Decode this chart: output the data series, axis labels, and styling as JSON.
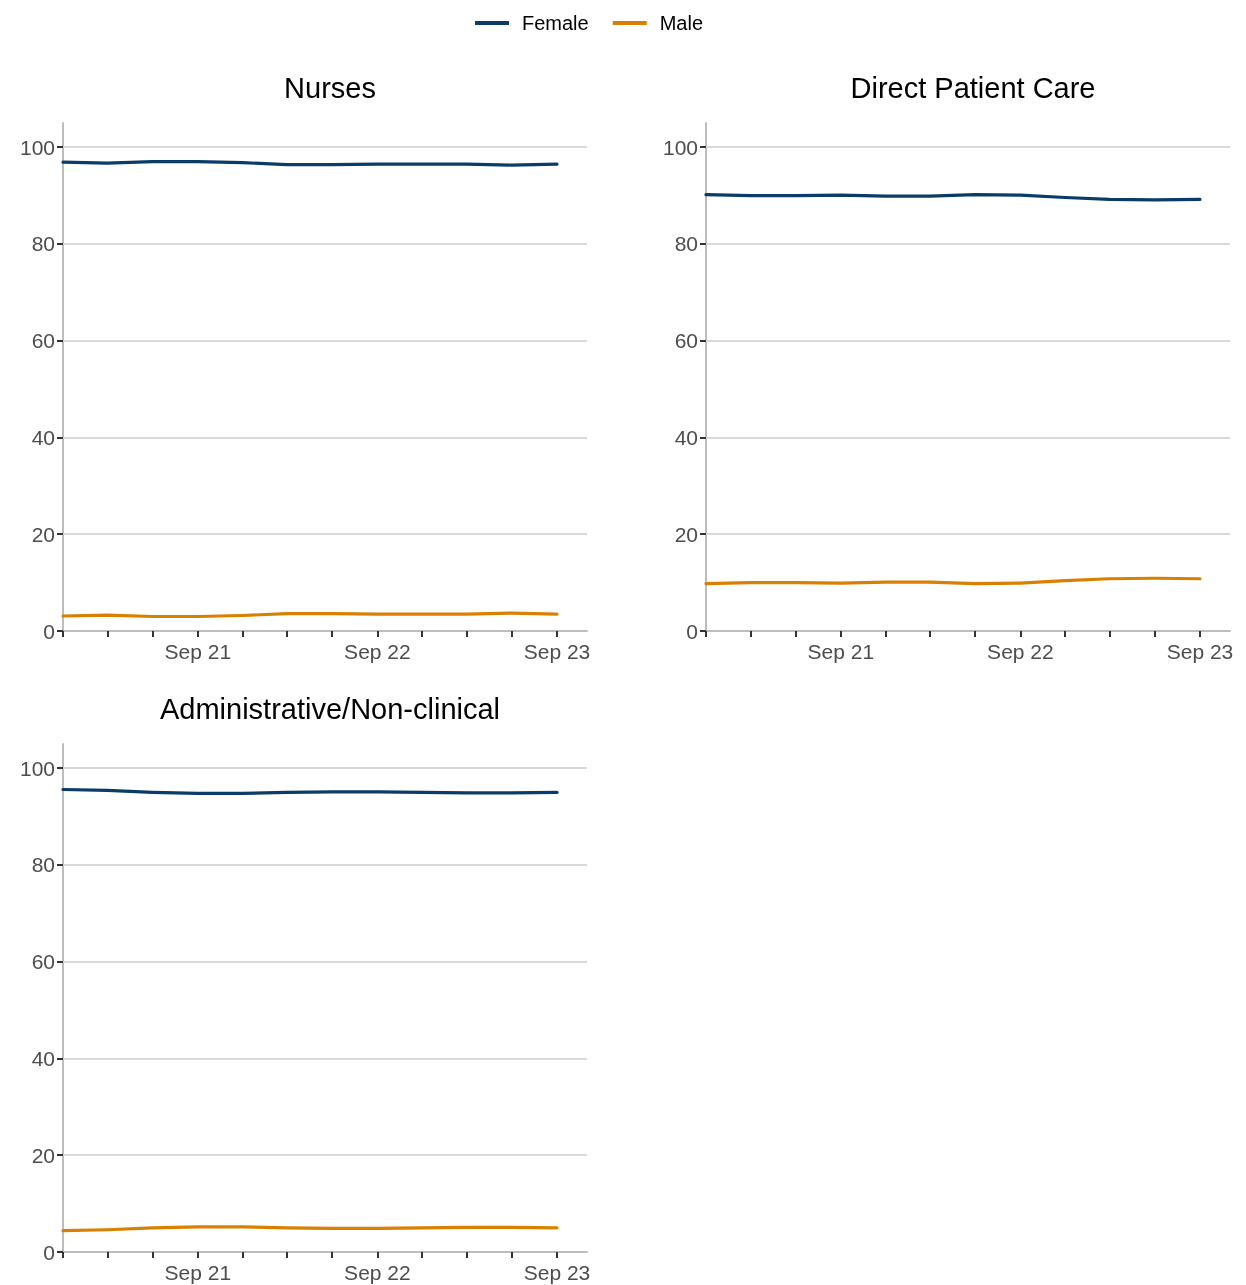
{
  "chart_data": [
    {
      "type": "line",
      "title": "Nurses",
      "legend": "top",
      "grid": "y",
      "marker": "none",
      "line_style": "solid",
      "x": [
        "2020-12",
        "2021-03",
        "2021-06",
        "2021-09",
        "2021-12",
        "2022-03",
        "2022-06",
        "2022-09",
        "2022-12",
        "2023-03",
        "2023-06",
        "2023-09"
      ],
      "xlim": [
        "2020-12",
        "2023-11"
      ],
      "xticks": [
        {
          "value": "2020-12",
          "label": null
        },
        {
          "value": "2021-03",
          "label": null
        },
        {
          "value": "2021-06",
          "label": null
        },
        {
          "value": "2021-09",
          "label": "Sep 21"
        },
        {
          "value": "2021-12",
          "label": null
        },
        {
          "value": "2022-03",
          "label": null
        },
        {
          "value": "2022-06",
          "label": null
        },
        {
          "value": "2022-09",
          "label": "Sep 22"
        },
        {
          "value": "2022-12",
          "label": null
        },
        {
          "value": "2023-03",
          "label": null
        },
        {
          "value": "2023-06",
          "label": null
        },
        {
          "value": "2023-09",
          "label": "Sep 23"
        }
      ],
      "ylim": [
        0,
        105
      ],
      "yticks": [
        0,
        20,
        40,
        60,
        80,
        100
      ],
      "series": [
        {
          "name": "Female",
          "color": "#0b3c68",
          "values": [
            96.9,
            96.7,
            97.0,
            97.0,
            96.8,
            96.4,
            96.4,
            96.5,
            96.5,
            96.5,
            96.3,
            96.5
          ]
        },
        {
          "name": "Male",
          "color": "#d98000",
          "values": [
            3.1,
            3.3,
            3.0,
            3.0,
            3.2,
            3.6,
            3.6,
            3.5,
            3.5,
            3.5,
            3.7,
            3.5
          ]
        }
      ]
    },
    {
      "type": "line",
      "title": "Direct Patient Care",
      "legend": false,
      "grid": "y",
      "marker": "none",
      "line_style": "solid",
      "x": [
        "2020-12",
        "2021-03",
        "2021-06",
        "2021-09",
        "2021-12",
        "2022-03",
        "2022-06",
        "2022-09",
        "2022-12",
        "2023-03",
        "2023-06",
        "2023-09"
      ],
      "xlim": [
        "2020-12",
        "2023-11"
      ],
      "xticks": [
        {
          "value": "2020-12",
          "label": null
        },
        {
          "value": "2021-03",
          "label": null
        },
        {
          "value": "2021-06",
          "label": null
        },
        {
          "value": "2021-09",
          "label": "Sep 21"
        },
        {
          "value": "2021-12",
          "label": null
        },
        {
          "value": "2022-03",
          "label": null
        },
        {
          "value": "2022-06",
          "label": null
        },
        {
          "value": "2022-09",
          "label": "Sep 22"
        },
        {
          "value": "2022-12",
          "label": null
        },
        {
          "value": "2023-03",
          "label": null
        },
        {
          "value": "2023-06",
          "label": null
        },
        {
          "value": "2023-09",
          "label": "Sep 23"
        }
      ],
      "ylim": [
        0,
        105
      ],
      "yticks": [
        0,
        20,
        40,
        60,
        80,
        100
      ],
      "series": [
        {
          "color": "#0b3c68",
          "values": [
            90.2,
            90.0,
            90.0,
            90.1,
            89.9,
            89.9,
            90.2,
            90.1,
            89.6,
            89.2,
            89.1,
            89.2
          ]
        },
        {
          "color": "#d98000",
          "values": [
            9.8,
            10.0,
            10.0,
            9.9,
            10.1,
            10.1,
            9.8,
            9.9,
            10.4,
            10.8,
            10.9,
            10.8
          ]
        }
      ]
    },
    {
      "type": "line",
      "title": "Administrative/Non-clinical",
      "legend": false,
      "grid": "y",
      "marker": "none",
      "line_style": "solid",
      "x": [
        "2020-12",
        "2021-03",
        "2021-06",
        "2021-09",
        "2021-12",
        "2022-03",
        "2022-06",
        "2022-09",
        "2022-12",
        "2023-03",
        "2023-06",
        "2023-09"
      ],
      "xlim": [
        "2020-12",
        "2023-11"
      ],
      "xticks": [
        {
          "value": "2020-12",
          "label": null
        },
        {
          "value": "2021-03",
          "label": null
        },
        {
          "value": "2021-06",
          "label": null
        },
        {
          "value": "2021-09",
          "label": "Sep 21"
        },
        {
          "value": "2021-12",
          "label": null
        },
        {
          "value": "2022-03",
          "label": null
        },
        {
          "value": "2022-06",
          "label": null
        },
        {
          "value": "2022-09",
          "label": "Sep 22"
        },
        {
          "value": "2022-12",
          "label": null
        },
        {
          "value": "2023-03",
          "label": null
        },
        {
          "value": "2023-06",
          "label": null
        },
        {
          "value": "2023-09",
          "label": "Sep 23"
        }
      ],
      "ylim": [
        0,
        105
      ],
      "yticks": [
        0,
        20,
        40,
        60,
        80,
        100
      ],
      "series": [
        {
          "color": "#0b3c68",
          "values": [
            95.6,
            95.4,
            95.0,
            94.8,
            94.8,
            95.0,
            95.1,
            95.1,
            95.0,
            94.9,
            94.9,
            95.0
          ]
        },
        {
          "color": "#d98000",
          "values": [
            4.4,
            4.6,
            5.0,
            5.2,
            5.2,
            5.0,
            4.9,
            4.9,
            5.0,
            5.1,
            5.1,
            5.0
          ]
        }
      ]
    }
  ]
}
